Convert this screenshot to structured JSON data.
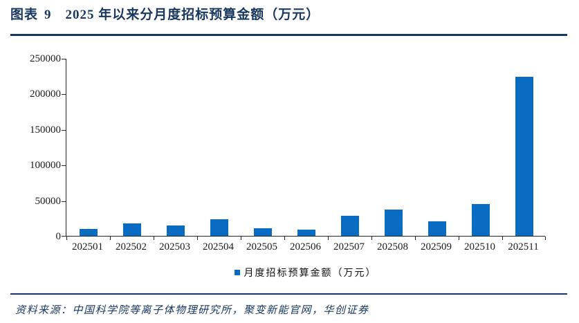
{
  "title": {
    "prefix": "图表",
    "number": "9",
    "text": "2025 年以来分月度招标预算金额（万元）"
  },
  "colors": {
    "navy": "#17375E",
    "bar_blue": "#0A6BC2",
    "axis": "#262626",
    "label_text": "#1A1A1A"
  },
  "chart_data": {
    "type": "bar",
    "categories": [
      "202501",
      "202502",
      "202503",
      "202504",
      "202505",
      "202506",
      "202507",
      "202508",
      "202509",
      "202510",
      "202511"
    ],
    "values": [
      9400,
      17800,
      14900,
      23000,
      11000,
      8500,
      27800,
      37200,
      20400,
      44600,
      224000
    ],
    "title": "2025 年以来分月度招标预算金额（万元）",
    "xlabel": "",
    "ylabel": "",
    "ylim": [
      0,
      250000
    ],
    "yticks": [
      0,
      50000,
      100000,
      150000,
      200000,
      250000
    ],
    "grid": false,
    "legend_position": "bottom",
    "legend_label": "月度招标预算金额（万元）"
  },
  "footer": {
    "label": "资料来源：",
    "text": "中国科学院等离子体物理研究所，聚变新能官网，华创证券"
  }
}
